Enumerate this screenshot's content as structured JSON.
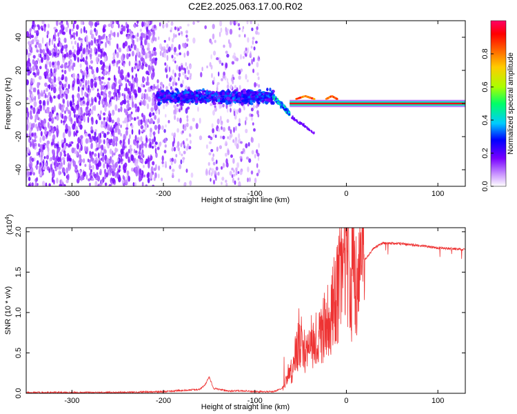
{
  "title": "C2E2.2025.063.17.00.R02",
  "chart_data": [
    {
      "type": "heatmap",
      "title": "C2E2.2025.063.17.00.R02",
      "xlabel": "Height of straight line (km)",
      "ylabel": "Frequency (Hz)",
      "xlim": [
        -350,
        130
      ],
      "ylim": [
        -50,
        50
      ],
      "xticks": [
        -300,
        -200,
        -100,
        0,
        100
      ],
      "xtick_labels": [
        "-300",
        "-200",
        "-100",
        "0",
        "100"
      ],
      "yticks": [
        -40,
        -20,
        0,
        20,
        40
      ],
      "ytick_labels": [
        "-40",
        "-20",
        "0",
        "20",
        "40"
      ],
      "colorbar": {
        "label": "Normalized spectral amplitude",
        "range": [
          0.0,
          1.0
        ],
        "ticks": [
          0.0,
          0.2,
          0.4,
          0.6,
          0.8
        ],
        "tick_labels": [
          "0.0",
          "0.2",
          "0.4",
          "0.6",
          "0.8"
        ],
        "colors": [
          "#ffffff",
          "#cc99ff",
          "#7700ff",
          "#0000ff",
          "#00ccff",
          "#00ff66",
          "#aaff00",
          "#ffcc00",
          "#ff6600",
          "#ff0000",
          "#ff0066"
        ]
      },
      "features": [
        {
          "name": "broadband noise",
          "x_range": [
            -350,
            -207
          ],
          "freq_range": [
            -50,
            50
          ],
          "amplitude": 0.2
        },
        {
          "name": "sparse noise",
          "x_range": [
            -207,
            -95
          ],
          "freq_range": [
            -50,
            50
          ],
          "amplitude": 0.08
        },
        {
          "name": "carrier band",
          "x_range": [
            -207,
            -80
          ],
          "freq_range": [
            -2,
            10
          ],
          "amplitude": 0.35
        },
        {
          "name": "carrier drift",
          "x_range": [
            -80,
            -62
          ],
          "freq_range": [
            -10,
            5
          ],
          "amplitude": 0.4
        },
        {
          "name": "secondary branch",
          "x_range": [
            -60,
            -35
          ],
          "freq_range": [
            -18,
            -8
          ],
          "amplitude": 0.15
        },
        {
          "name": "carrier line",
          "x_range": [
            -62,
            130
          ],
          "freq_range": [
            -1,
            1
          ],
          "amplitude": 1.0
        }
      ]
    },
    {
      "type": "line",
      "xlabel": "Height of straight line (km)",
      "ylabel": "SNR (10 * v/v)",
      "scale_label": "(x10",
      "scale_exponent": "4",
      "scale_suffix": ")",
      "xlim": [
        -350,
        130
      ],
      "ylim": [
        0.0,
        2.05
      ],
      "xticks": [
        -300,
        -200,
        -100,
        0,
        100
      ],
      "xtick_labels": [
        "-300",
        "-200",
        "-100",
        "0",
        "100"
      ],
      "yticks": [
        0.0,
        0.5,
        1.0,
        1.5,
        2.0
      ],
      "ytick_labels": [
        "0.0",
        "0.5",
        "1.0",
        "1.5",
        "2.0"
      ],
      "color": "#ee3333",
      "series": [
        {
          "name": "SNR",
          "x": [
            -350,
            -300,
            -250,
            -200,
            -160,
            -155,
            -150,
            -145,
            -130,
            -110,
            -100,
            -80,
            -70,
            -60,
            -55,
            -50,
            -45,
            -40,
            -35,
            -30,
            -25,
            -20,
            -15,
            -10,
            -5,
            0,
            5,
            10,
            20,
            30,
            40,
            60,
            80,
            100,
            130
          ],
          "values": [
            0.01,
            0.01,
            0.01,
            0.02,
            0.05,
            0.1,
            0.2,
            0.06,
            0.03,
            0.03,
            0.02,
            0.02,
            0.06,
            0.25,
            0.5,
            0.65,
            0.55,
            0.6,
            0.7,
            0.65,
            0.8,
            0.9,
            1.1,
            1.25,
            1.6,
            1.75,
            1.4,
            1.45,
            1.65,
            1.8,
            1.86,
            1.85,
            1.83,
            1.8,
            1.78
          ]
        }
      ]
    }
  ]
}
